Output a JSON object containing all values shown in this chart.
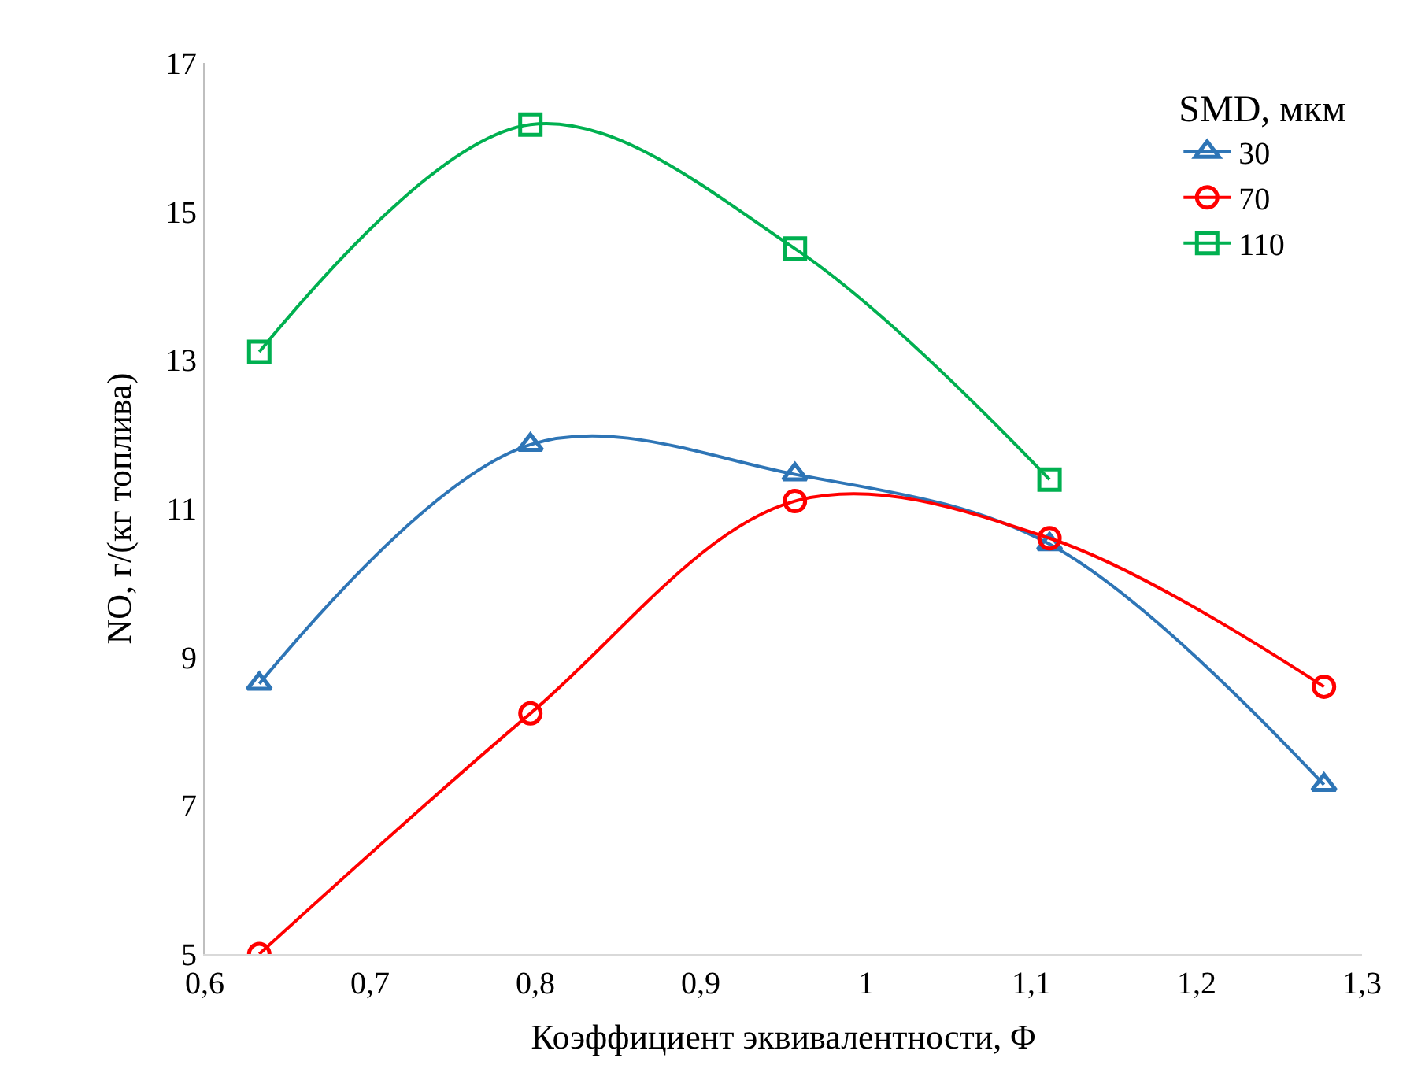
{
  "chart_data": {
    "type": "line",
    "xlabel": "Коэффициент эквивалентности, Φ",
    "ylabel": "NO, г/(кг топлива)",
    "legend_title": "SMD, мкм",
    "xlim": [
      0.6,
      1.3
    ],
    "xticks": [
      {
        "value": 0.6,
        "label": "0,6"
      },
      {
        "value": 0.7,
        "label": "0,7"
      },
      {
        "value": 0.8,
        "label": "0,8"
      },
      {
        "value": 0.9,
        "label": "0,9"
      },
      1,
      {
        "value": 1.1,
        "label": "1,1"
      },
      {
        "value": 1.2,
        "label": "1,2"
      },
      {
        "value": 1.3,
        "label": "1,3"
      }
    ],
    "ylim": [
      5,
      17
    ],
    "yticks": [
      5,
      7,
      9,
      11,
      13,
      15,
      17
    ],
    "legend": "top right",
    "line_style": "solid",
    "x": [
      0.633,
      0.797,
      0.957,
      1.111,
      1.277
    ],
    "series": [
      {
        "name": "30",
        "color": "#2e75b6",
        "marker": "triangle",
        "values": [
          8.64,
          11.86,
          11.46,
          10.52,
          7.28
        ]
      },
      {
        "name": "70",
        "color": "#ff0000",
        "marker": "circle",
        "values": [
          5.0,
          8.24,
          11.1,
          10.6,
          8.6
        ]
      },
      {
        "name": "110",
        "color": "#00b050",
        "marker": "square",
        "values": [
          13.11,
          16.17,
          14.5,
          11.39,
          null
        ]
      }
    ]
  }
}
